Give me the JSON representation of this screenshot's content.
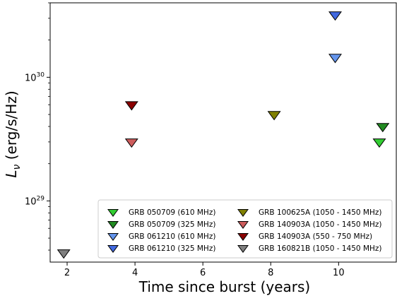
{
  "chart_data": {
    "type": "scatter",
    "title": "",
    "xlabel": "Time since burst (years)",
    "ylabel_main": "L",
    "ylabel_sub": "ν",
    "ylabel_unit": " (erg/s/Hz)",
    "xlim": [
      1.5,
      11.7
    ],
    "ylim": [
      3.2e+28,
      4e+30
    ],
    "yscale": "log",
    "x_ticks": [
      2,
      4,
      6,
      8,
      10
    ],
    "x_tick_labels": [
      "2",
      "4",
      "6",
      "8",
      "10"
    ],
    "y_major_ticks": [
      {
        "value": 1e+29,
        "base": "10",
        "exp": "29"
      },
      {
        "value": 1e+30,
        "base": "10",
        "exp": "30"
      }
    ],
    "y_minor_ticks": [
      4e+28,
      5e+28,
      6e+28,
      7e+28,
      8e+28,
      9e+28,
      2e+29,
      3e+29,
      4e+29,
      5e+29,
      6e+29,
      7e+29,
      8e+29,
      9e+29,
      2e+30,
      3e+30,
      4e+30
    ],
    "marker": "triangle-down",
    "grid": false,
    "legend_position": "bottom-right",
    "legend_columns": 2,
    "series": [
      {
        "name": "GRB 050709 (610 MHz)",
        "color": "#32cd32",
        "points": [
          {
            "x": 11.2,
            "y": 3e+29
          }
        ]
      },
      {
        "name": "GRB 050709 (325 MHz)",
        "color": "#228b22",
        "points": [
          {
            "x": 11.3,
            "y": 4e+29
          }
        ]
      },
      {
        "name": "GRB 061210 (610 MHz)",
        "color": "#6495ed",
        "points": [
          {
            "x": 9.9,
            "y": 1.45e+30
          }
        ]
      },
      {
        "name": "GRB 061210 (325 MHz)",
        "color": "#4169e1",
        "points": [
          {
            "x": 9.9,
            "y": 3.2e+30
          }
        ]
      },
      {
        "name": "GRB 100625A (1050 - 1450 MHz)",
        "color": "#808000",
        "points": [
          {
            "x": 8.1,
            "y": 5e+29
          }
        ]
      },
      {
        "name": "GRB 140903A (1050 - 1450 MHz)",
        "color": "#cd5c5c",
        "points": [
          {
            "x": 3.9,
            "y": 3e+29
          }
        ]
      },
      {
        "name": "GRB 140903A (550 - 750 MHz)",
        "color": "#8b0000",
        "points": [
          {
            "x": 3.9,
            "y": 6e+29
          }
        ]
      },
      {
        "name": "GRB 160821B (1050 - 1450 MHz)",
        "color": "#808080",
        "points": [
          {
            "x": 1.9,
            "y": 3.8e+28
          }
        ]
      }
    ]
  }
}
